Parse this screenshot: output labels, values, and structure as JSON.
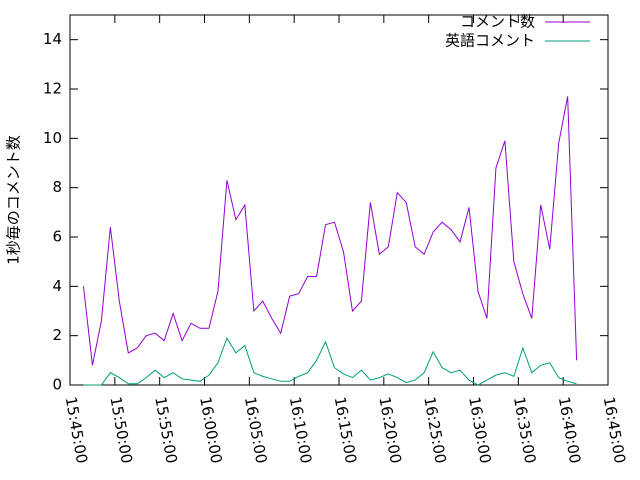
{
  "chart_data": {
    "type": "line",
    "ylabel": "1秒毎のコメント数",
    "x": [
      "15:46:30",
      "15:47:30",
      "15:48:30",
      "15:49:30",
      "15:50:30",
      "15:51:30",
      "15:52:30",
      "15:53:30",
      "15:54:30",
      "15:55:30",
      "15:56:30",
      "15:57:30",
      "15:58:30",
      "15:59:30",
      "16:00:30",
      "16:01:30",
      "16:02:30",
      "16:03:30",
      "16:04:30",
      "16:05:30",
      "16:06:30",
      "16:07:30",
      "16:08:30",
      "16:09:30",
      "16:10:30",
      "16:11:30",
      "16:12:30",
      "16:13:30",
      "16:14:30",
      "16:15:30",
      "16:16:30",
      "16:17:30",
      "16:18:30",
      "16:19:30",
      "16:20:30",
      "16:21:30",
      "16:22:30",
      "16:23:30",
      "16:24:30",
      "16:25:30",
      "16:26:30",
      "16:27:30",
      "16:28:30",
      "16:29:30",
      "16:30:30",
      "16:31:30",
      "16:32:30",
      "16:33:30",
      "16:34:30",
      "16:35:30",
      "16:36:30",
      "16:37:30",
      "16:38:30",
      "16:39:30",
      "16:40:30",
      "16:41:30"
    ],
    "series": [
      {
        "name": "コメント数",
        "color": "#9400d3",
        "values": [
          4.0,
          0.8,
          2.6,
          6.4,
          3.4,
          1.3,
          1.5,
          2.0,
          2.1,
          1.8,
          2.9,
          1.8,
          2.5,
          2.3,
          2.3,
          3.8,
          8.3,
          6.7,
          7.3,
          3.0,
          3.4,
          2.7,
          2.1,
          3.6,
          3.7,
          4.4,
          4.4,
          6.5,
          6.6,
          5.4,
          3.0,
          3.4,
          7.4,
          5.3,
          5.6,
          7.8,
          7.4,
          5.6,
          5.3,
          6.2,
          6.6,
          6.3,
          5.8,
          7.2,
          3.8,
          2.7,
          8.8,
          9.9,
          5.0,
          3.7,
          2.7,
          7.3,
          5.5,
          9.8,
          11.7,
          1.0
        ]
      },
      {
        "name": "英語コメント",
        "color": "#009e73",
        "values": [
          0,
          0,
          0,
          0.5,
          0.3,
          0.05,
          0.05,
          0.3,
          0.6,
          0.3,
          0.5,
          0.25,
          0.2,
          0.15,
          0.4,
          0.9,
          1.9,
          1.3,
          1.6,
          0.5,
          0.35,
          0.25,
          0.15,
          0.15,
          0.35,
          0.5,
          1.0,
          1.75,
          0.7,
          0.45,
          0.3,
          0.6,
          0.2,
          0.3,
          0.45,
          0.3,
          0.1,
          0.2,
          0.5,
          1.35,
          0.7,
          0.5,
          0.6,
          0.2,
          0,
          0.2,
          0.4,
          0.5,
          0.35,
          1.5,
          0.5,
          0.8,
          0.9,
          0.3,
          0.15,
          0.05
        ]
      }
    ],
    "xlim": [
      "15:45:00",
      "16:45:00"
    ],
    "xticks": [
      "15:45:00",
      "15:50:00",
      "15:55:00",
      "16:00:00",
      "16:05:00",
      "16:10:00",
      "16:15:00",
      "16:20:00",
      "16:25:00",
      "16:30:00",
      "16:35:00",
      "16:40:00",
      "16:45:00"
    ],
    "ylim": [
      0,
      15
    ],
    "yticks": [
      0,
      2,
      4,
      6,
      8,
      10,
      12,
      14
    ],
    "legend": "top-right"
  }
}
